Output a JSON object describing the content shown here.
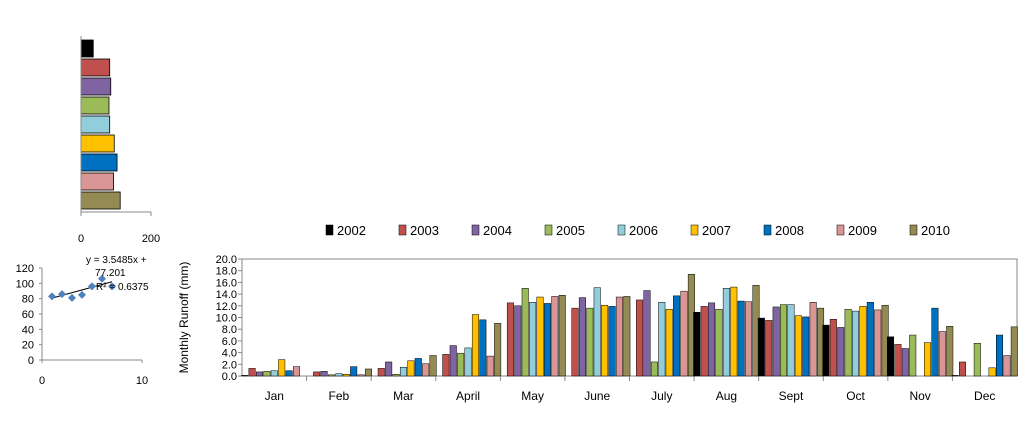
{
  "chart_data": [
    {
      "type": "bar",
      "orientation": "horizontal",
      "xlim": [
        0,
        200
      ],
      "xticks": [
        "0",
        "200"
      ],
      "series_colors": [
        "#000000",
        "#C0504D",
        "#8064A2",
        "#9BBB59",
        "#92CDDC",
        "#FFC000",
        "#0070C0",
        "#D99694",
        "#948A54"
      ],
      "values": [
        35,
        82,
        85,
        80,
        82,
        95,
        103,
        93,
        112
      ]
    },
    {
      "type": "scatter",
      "xlim": [
        0,
        10
      ],
      "ylim": [
        0,
        120
      ],
      "xticks": [
        "0",
        "10"
      ],
      "yticks": [
        "0",
        "20",
        "40",
        "60",
        "80",
        "100",
        "120"
      ],
      "points": [
        {
          "x": 1,
          "y": 83
        },
        {
          "x": 2,
          "y": 86
        },
        {
          "x": 3,
          "y": 81
        },
        {
          "x": 4,
          "y": 85
        },
        {
          "x": 5,
          "y": 96
        },
        {
          "x": 6,
          "y": 106
        },
        {
          "x": 7,
          "y": 96
        }
      ],
      "trendline": {
        "slope": 3.5485,
        "intercept": 77.201
      },
      "equation_line1": "y = 3.5485x +",
      "equation_line2": "77.201",
      "r2_label": "R² = 0.6375",
      "point_color": "#4F81BD"
    },
    {
      "type": "bar",
      "ylabel": "Monthly  Runoff (mm)",
      "ylim": [
        0,
        20
      ],
      "yticks": [
        "0.0",
        "2.0",
        "4.0",
        "6.0",
        "8.0",
        "10.0",
        "12.0",
        "14.0",
        "16.0",
        "18.0",
        "20.0"
      ],
      "categories": [
        "Jan",
        "Feb",
        "Mar",
        "April",
        "May",
        "June",
        "July",
        "Aug",
        "Sept",
        "Oct",
        "Nov",
        "Dec"
      ],
      "legend_position": "top",
      "series": [
        {
          "name": "2002",
          "color": "#000000",
          "values": [
            0.1,
            0.0,
            0.0,
            0.0,
            0.0,
            0.0,
            0.0,
            10.9,
            9.9,
            8.7,
            6.7,
            0.1
          ]
        },
        {
          "name": "2003",
          "color": "#C0504D",
          "values": [
            1.3,
            0.7,
            1.3,
            3.7,
            12.5,
            11.6,
            13.0,
            11.9,
            9.5,
            9.7,
            5.4,
            2.4
          ]
        },
        {
          "name": "2004",
          "color": "#8064A2",
          "values": [
            0.7,
            0.8,
            2.4,
            5.2,
            12.0,
            13.4,
            14.6,
            12.5,
            11.8,
            8.3,
            4.7,
            0.0
          ]
        },
        {
          "name": "2005",
          "color": "#9BBB59",
          "values": [
            0.8,
            0.2,
            0.3,
            3.9,
            15.0,
            11.6,
            2.4,
            11.4,
            12.2,
            11.4,
            7.0,
            5.6
          ]
        },
        {
          "name": "2006",
          "color": "#92CDDC",
          "values": [
            0.9,
            0.4,
            1.5,
            4.8,
            12.6,
            15.1,
            12.6,
            15.0,
            12.2,
            11.1,
            0.0,
            0.0
          ]
        },
        {
          "name": "2007",
          "color": "#FFC000",
          "values": [
            2.8,
            0.3,
            2.6,
            10.5,
            13.5,
            12.1,
            11.4,
            15.2,
            10.3,
            11.9,
            5.7,
            1.4
          ]
        },
        {
          "name": "2008",
          "color": "#0070C0",
          "values": [
            0.9,
            1.6,
            3.0,
            9.6,
            12.4,
            11.9,
            13.7,
            12.8,
            10.1,
            12.6,
            11.6,
            7.0
          ]
        },
        {
          "name": "2009",
          "color": "#D99694",
          "values": [
            1.6,
            0.2,
            2.1,
            3.4,
            13.6,
            13.5,
            14.5,
            12.7,
            12.6,
            11.3,
            7.6,
            3.5
          ]
        },
        {
          "name": "2010",
          "color": "#948A54",
          "values": [
            0.0,
            1.2,
            3.5,
            9.0,
            13.8,
            13.6,
            17.4,
            15.5,
            11.6,
            12.1,
            8.5,
            8.4
          ]
        }
      ]
    }
  ]
}
